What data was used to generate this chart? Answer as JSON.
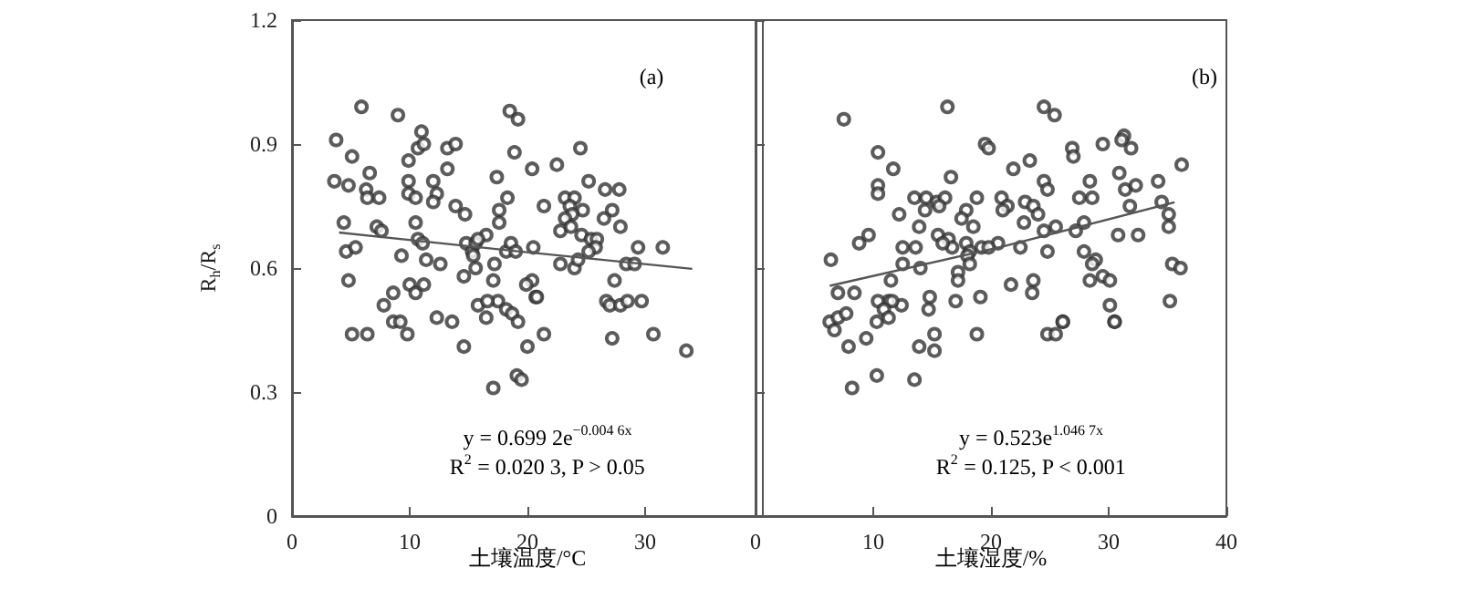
{
  "chart_data": [
    {
      "type": "scatter",
      "ylabel": "R$_{h}$/R$_{s}$",
      "xlabel": "土壤温度/°C",
      "annotations": [
        "(a)",
        "y = 0.699 2e$^{−0.004 6x}$",
        "R$^{2}$ = 0.020 3, P > 0.05"
      ],
      "xlim": [
        0,
        40
      ],
      "xticks": [
        0,
        10,
        20,
        30
      ],
      "ylim": [
        0,
        1.2
      ],
      "yticks": [
        0,
        0.3,
        0.6,
        0.9,
        1.2
      ],
      "grid": false,
      "marker": "circle",
      "series": [
        {
          "color": "#333333",
          "x": [
            5.9,
            9.0,
            18.5,
            19.2,
            3.75,
            5.1,
            6.6,
            3.6,
            4.8,
            6.3,
            6.4,
            7.4,
            9.9,
            11.0,
            10.7,
            11.2,
            9.9,
            9.9,
            10.5,
            12.0,
            12.3,
            12.0,
            13.2,
            13.9,
            13.2,
            13.9,
            14.7,
            10.5,
            4.4,
            4.6,
            5.4,
            7.2,
            7.6,
            10.7,
            11.1,
            9.3,
            11.4,
            12.6,
            4.8,
            17.4,
            18.9,
            20.4,
            22.5,
            24.5,
            18.3,
            21.4,
            17.6,
            17.6,
            23.2,
            24.0,
            23.6,
            24.7,
            23.8,
            23.2,
            25.2,
            26.6,
            27.8,
            27.2,
            26.5,
            27.9,
            22.8,
            23.7,
            24.6,
            25.4,
            25.9,
            25.8,
            25.2,
            16.5,
            14.8,
            15.3,
            15.6,
            15.8,
            15.4,
            17.2,
            18.2,
            18.6,
            19.0,
            20.5,
            15.6,
            14.6,
            17.1,
            22.8,
            24.0,
            24.3,
            28.4,
            29.1,
            29.4,
            31.5,
            27.4,
            20.4,
            20.7,
            8.6,
            10.0,
            10.5,
            11.2,
            7.8,
            12.3,
            13.6,
            15.8,
            16.5,
            17.5,
            18.2,
            18.7,
            19.2,
            26.7,
            27.0,
            27.9,
            28.5,
            29.7,
            8.6,
            9.2,
            5.1,
            6.4,
            9.8,
            14.6,
            20.0,
            21.4,
            17.1,
            19.1,
            19.5,
            27.2,
            30.7,
            33.5,
            19.9,
            20.8,
            16.6
          ],
          "values": [
            0.99,
            0.97,
            0.98,
            0.96,
            0.91,
            0.87,
            0.83,
            0.81,
            0.8,
            0.79,
            0.77,
            0.77,
            0.86,
            0.93,
            0.89,
            0.9,
            0.81,
            0.78,
            0.77,
            0.81,
            0.78,
            0.76,
            0.89,
            0.9,
            0.84,
            0.75,
            0.73,
            0.71,
            0.71,
            0.64,
            0.65,
            0.7,
            0.69,
            0.67,
            0.66,
            0.63,
            0.62,
            0.61,
            0.57,
            0.82,
            0.88,
            0.84,
            0.85,
            0.89,
            0.77,
            0.75,
            0.74,
            0.71,
            0.77,
            0.77,
            0.75,
            0.74,
            0.73,
            0.72,
            0.81,
            0.79,
            0.79,
            0.74,
            0.72,
            0.7,
            0.69,
            0.7,
            0.68,
            0.67,
            0.67,
            0.65,
            0.64,
            0.68,
            0.66,
            0.64,
            0.66,
            0.67,
            0.63,
            0.61,
            0.64,
            0.66,
            0.64,
            0.65,
            0.6,
            0.58,
            0.57,
            0.61,
            0.6,
            0.62,
            0.61,
            0.61,
            0.65,
            0.65,
            0.57,
            0.57,
            0.53,
            0.54,
            0.56,
            0.54,
            0.56,
            0.51,
            0.48,
            0.47,
            0.51,
            0.48,
            0.52,
            0.5,
            0.49,
            0.47,
            0.52,
            0.51,
            0.51,
            0.52,
            0.52,
            0.47,
            0.47,
            0.44,
            0.44,
            0.44,
            0.41,
            0.41,
            0.44,
            0.31,
            0.34,
            0.33,
            0.43,
            0.44,
            0.4,
            0.56,
            0.53,
            0.52
          ]
        },
        {
          "type": "line",
          "marker": "none",
          "color": "#555555",
          "x": [
            4,
            19,
            34
          ],
          "values": [
            0.686,
            0.641,
            0.598
          ]
        }
      ]
    },
    {
      "type": "scatter",
      "xlabel": "土壤湿度/%",
      "annotations": [
        "(b)",
        "y = 0.523e$^{1.046 7x}$",
        "R$^{2}$ = 0.125, P < 0.001"
      ],
      "xlim": [
        0,
        40
      ],
      "xticks": [
        0,
        10,
        20,
        30,
        40
      ],
      "ylim": [
        0,
        1.2
      ],
      "yticks": [
        0,
        0.3,
        0.6,
        0.9,
        1.2
      ],
      "tick_labels": "x",
      "grid": false,
      "marker": "circle",
      "series": [
        {
          "color": "#333333",
          "x": [
            7.5,
            16.3,
            24.5,
            25.4,
            10.4,
            11.7,
            10.4,
            10.4,
            12.2,
            13.5,
            14.5,
            15.4,
            16.1,
            15.6,
            16.6,
            19.5,
            19.8,
            18.8,
            17.9,
            17.5,
            18.5,
            21.9,
            23.3,
            20.9,
            21.4,
            21.0,
            22.9,
            23.6,
            24.0,
            22.8,
            24.5,
            24.8,
            26.9,
            27.0,
            29.5,
            31.3,
            31.1,
            31.9,
            30.9,
            31.4,
            32.3,
            34.2,
            36.2,
            27.5,
            28.6,
            28.4,
            31.8,
            34.5,
            35.1,
            35.1,
            30.8,
            32.5,
            27.9,
            27.2,
            25.5,
            24.5,
            24.8,
            22.5,
            20.6,
            19.2,
            19.8,
            17.9,
            18.2,
            18.0,
            18.2,
            17.2,
            15.5,
            16.4,
            16.7,
            15.9,
            13.9,
            14.4,
            12.5,
            13.6,
            12.5,
            14.0,
            8.8,
            9.6,
            6.4,
            27.9,
            28.9,
            28.6,
            29.5,
            30.1,
            35.4,
            36.1,
            11.5,
            17.2,
            21.7,
            23.6,
            23.5,
            28.4,
            19.1,
            17.0,
            14.8,
            14.7,
            12.4,
            11.3,
            11.6,
            10.4,
            10.9,
            7.0,
            8.4,
            6.3,
            7.0,
            7.7,
            10.3,
            11.3,
            26.1,
            30.1,
            30.5,
            35.2,
            6.7,
            7.9,
            9.4,
            10.3,
            8.2,
            13.5,
            13.9,
            15.2,
            15.2,
            18.8,
            24.8,
            25.5,
            26.1,
            30.5
          ],
          "values": [
            0.96,
            0.99,
            0.99,
            0.97,
            0.88,
            0.84,
            0.8,
            0.78,
            0.73,
            0.77,
            0.77,
            0.76,
            0.77,
            0.75,
            0.82,
            0.9,
            0.89,
            0.77,
            0.74,
            0.72,
            0.7,
            0.84,
            0.86,
            0.77,
            0.75,
            0.74,
            0.76,
            0.75,
            0.73,
            0.71,
            0.81,
            0.79,
            0.89,
            0.87,
            0.9,
            0.92,
            0.91,
            0.89,
            0.83,
            0.79,
            0.8,
            0.81,
            0.85,
            0.77,
            0.77,
            0.81,
            0.75,
            0.76,
            0.73,
            0.7,
            0.68,
            0.68,
            0.71,
            0.69,
            0.7,
            0.69,
            0.64,
            0.65,
            0.66,
            0.65,
            0.65,
            0.66,
            0.64,
            0.63,
            0.61,
            0.59,
            0.68,
            0.67,
            0.65,
            0.66,
            0.7,
            0.74,
            0.65,
            0.65,
            0.61,
            0.6,
            0.66,
            0.68,
            0.62,
            0.64,
            0.62,
            0.61,
            0.58,
            0.57,
            0.61,
            0.6,
            0.57,
            0.57,
            0.56,
            0.57,
            0.54,
            0.57,
            0.53,
            0.52,
            0.53,
            0.5,
            0.51,
            0.52,
            0.52,
            0.52,
            0.5,
            0.54,
            0.54,
            0.47,
            0.48,
            0.49,
            0.47,
            0.48,
            0.47,
            0.51,
            0.47,
            0.52,
            0.45,
            0.41,
            0.43,
            0.34,
            0.31,
            0.33,
            0.41,
            0.4,
            0.44,
            0.44,
            0.44,
            0.44,
            0.47,
            0.47
          ]
        },
        {
          "type": "line",
          "marker": "none",
          "color": "#555555",
          "x": [
            6.3,
            21,
            35.6
          ],
          "values": [
            0.557,
            0.652,
            0.759
          ]
        }
      ]
    }
  ]
}
